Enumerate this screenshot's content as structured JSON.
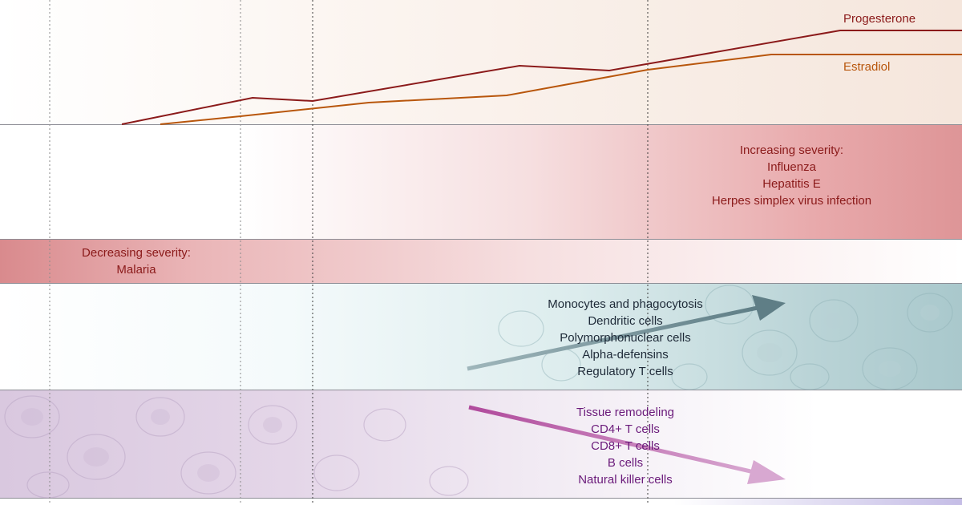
{
  "hormones": {
    "progesterone": {
      "label": "Progesterone",
      "color": "#8b1a1a"
    },
    "estradiol": {
      "label": "Estradiol",
      "color": "#b8560c"
    }
  },
  "increasing_severity": {
    "title": "Increasing severity:",
    "items": [
      "Influenza",
      "Hepatitis E",
      "Herpes simplex virus infection"
    ],
    "color": "#8b1a1a"
  },
  "decreasing_severity": {
    "title": "Decreasing severity:",
    "items": [
      "Malaria"
    ],
    "color": "#8b1a1a"
  },
  "innate_immunity": {
    "items": [
      "Monocytes and phagocytosis",
      "Dendritic cells",
      "Polymorphonuclear cells",
      "Alpha-defensins",
      "Regulatory T cells"
    ],
    "trend": "increasing",
    "color": "#1e2a38"
  },
  "adaptive_immunity": {
    "items": [
      "Tissue remodeling",
      "CD4+ T cells",
      "CD8+ T cells",
      "B cells",
      "Natural killer cells"
    ],
    "trend": "decreasing",
    "color": "#6a1a7a"
  }
}
